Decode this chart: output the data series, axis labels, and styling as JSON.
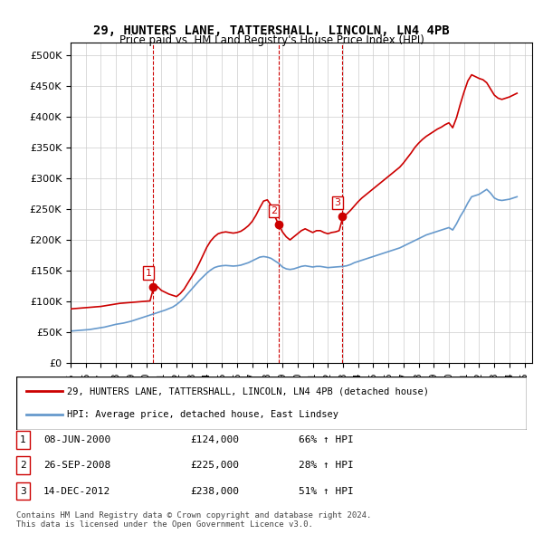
{
  "title": "29, HUNTERS LANE, TATTERSHALL, LINCOLN, LN4 4PB",
  "subtitle": "Price paid vs. HM Land Registry's House Price Index (HPI)",
  "xlim_start": 1995.0,
  "xlim_end": 2025.5,
  "ylim": [
    0,
    520000
  ],
  "yticks": [
    0,
    50000,
    100000,
    150000,
    200000,
    250000,
    300000,
    350000,
    400000,
    450000,
    500000
  ],
  "ytick_labels": [
    "£0",
    "£50K",
    "£100K",
    "£150K",
    "£200K",
    "£250K",
    "£300K",
    "£350K",
    "£400K",
    "£450K",
    "£500K"
  ],
  "sale_dates": [
    2000.44,
    2008.73,
    2012.95
  ],
  "sale_prices": [
    124000,
    225000,
    238000
  ],
  "sale_labels": [
    "1",
    "2",
    "3"
  ],
  "red_color": "#cc0000",
  "blue_color": "#6699cc",
  "vline_color": "#cc0000",
  "grid_color": "#cccccc",
  "bg_color": "#ffffff",
  "legend_entries": [
    "29, HUNTERS LANE, TATTERSHALL, LINCOLN, LN4 4PB (detached house)",
    "HPI: Average price, detached house, East Lindsey"
  ],
  "table_rows": [
    [
      "1",
      "08-JUN-2000",
      "£124,000",
      "66% ↑ HPI"
    ],
    [
      "2",
      "26-SEP-2008",
      "£225,000",
      "28% ↑ HPI"
    ],
    [
      "3",
      "14-DEC-2012",
      "£238,000",
      "51% ↑ HPI"
    ]
  ],
  "footnote": "Contains HM Land Registry data © Crown copyright and database right 2024.\nThis data is licensed under the Open Government Licence v3.0.",
  "hpi_data": {
    "years": [
      1995.0,
      1995.25,
      1995.5,
      1995.75,
      1996.0,
      1996.25,
      1996.5,
      1996.75,
      1997.0,
      1997.25,
      1997.5,
      1997.75,
      1998.0,
      1998.25,
      1998.5,
      1998.75,
      1999.0,
      1999.25,
      1999.5,
      1999.75,
      2000.0,
      2000.25,
      2000.5,
      2000.75,
      2001.0,
      2001.25,
      2001.5,
      2001.75,
      2002.0,
      2002.25,
      2002.5,
      2002.75,
      2003.0,
      2003.25,
      2003.5,
      2003.75,
      2004.0,
      2004.25,
      2004.5,
      2004.75,
      2005.0,
      2005.25,
      2005.5,
      2005.75,
      2006.0,
      2006.25,
      2006.5,
      2006.75,
      2007.0,
      2007.25,
      2007.5,
      2007.75,
      2008.0,
      2008.25,
      2008.5,
      2008.75,
      2009.0,
      2009.25,
      2009.5,
      2009.75,
      2010.0,
      2010.25,
      2010.5,
      2010.75,
      2011.0,
      2011.25,
      2011.5,
      2011.75,
      2012.0,
      2012.25,
      2012.5,
      2012.75,
      2013.0,
      2013.25,
      2013.5,
      2013.75,
      2014.0,
      2014.25,
      2014.5,
      2014.75,
      2015.0,
      2015.25,
      2015.5,
      2015.75,
      2016.0,
      2016.25,
      2016.5,
      2016.75,
      2017.0,
      2017.25,
      2017.5,
      2017.75,
      2018.0,
      2018.25,
      2018.5,
      2018.75,
      2019.0,
      2019.25,
      2019.5,
      2019.75,
      2020.0,
      2020.25,
      2020.5,
      2020.75,
      2021.0,
      2021.25,
      2021.5,
      2021.75,
      2022.0,
      2022.25,
      2022.5,
      2022.75,
      2023.0,
      2023.25,
      2023.5,
      2023.75,
      2024.0,
      2024.25,
      2024.5
    ],
    "hpi_values": [
      52000,
      52500,
      53000,
      53500,
      54000,
      54500,
      55500,
      56500,
      57500,
      58500,
      60000,
      61500,
      63000,
      64000,
      65000,
      66500,
      68000,
      70000,
      72000,
      74000,
      76000,
      78000,
      80000,
      82000,
      84000,
      86000,
      88500,
      91000,
      95000,
      100000,
      106000,
      113000,
      120000,
      127000,
      134000,
      140000,
      146000,
      151000,
      155000,
      157000,
      158000,
      158500,
      158000,
      157500,
      158000,
      159000,
      161000,
      163000,
      166000,
      169000,
      172000,
      173000,
      172000,
      170000,
      166000,
      162000,
      156000,
      153000,
      152000,
      153000,
      155000,
      157000,
      158000,
      157000,
      156000,
      157000,
      157000,
      156000,
      155000,
      155500,
      156000,
      156500,
      157000,
      158000,
      160000,
      163000,
      165000,
      167000,
      169000,
      171000,
      173000,
      175000,
      177000,
      179000,
      181000,
      183000,
      185000,
      187000,
      190000,
      193000,
      196000,
      199000,
      202000,
      205000,
      208000,
      210000,
      212000,
      214000,
      216000,
      218000,
      220000,
      216000,
      226000,
      238000,
      248000,
      260000,
      270000,
      272000,
      274000,
      278000,
      282000,
      276000,
      268000,
      265000,
      264000,
      265000,
      266000,
      268000,
      270000
    ],
    "red_values": [
      88000,
      88500,
      89000,
      89500,
      90000,
      90500,
      91000,
      91500,
      92000,
      93000,
      94000,
      95000,
      96000,
      97000,
      97500,
      98000,
      98500,
      99000,
      99500,
      100000,
      100500,
      101000,
      124000,
      124000,
      118000,
      115000,
      112000,
      110000,
      108000,
      113000,
      120000,
      130000,
      140000,
      150000,
      162000,
      175000,
      188000,
      198000,
      205000,
      210000,
      212000,
      213000,
      212000,
      211000,
      212000,
      214000,
      218000,
      223000,
      230000,
      240000,
      252000,
      263000,
      265000,
      256000,
      238000,
      225000,
      213000,
      205000,
      200000,
      205000,
      210000,
      215000,
      218000,
      215000,
      212000,
      215000,
      215000,
      212000,
      210000,
      212000,
      213000,
      215000,
      238000,
      242000,
      248000,
      255000,
      262000,
      268000,
      273000,
      278000,
      283000,
      288000,
      293000,
      298000,
      303000,
      308000,
      313000,
      318000,
      325000,
      333000,
      341000,
      350000,
      357000,
      363000,
      368000,
      372000,
      376000,
      380000,
      383000,
      387000,
      390000,
      382000,
      398000,
      420000,
      440000,
      458000,
      468000,
      465000,
      462000,
      460000,
      455000,
      445000,
      435000,
      430000,
      428000,
      430000,
      432000,
      435000,
      438000
    ]
  }
}
